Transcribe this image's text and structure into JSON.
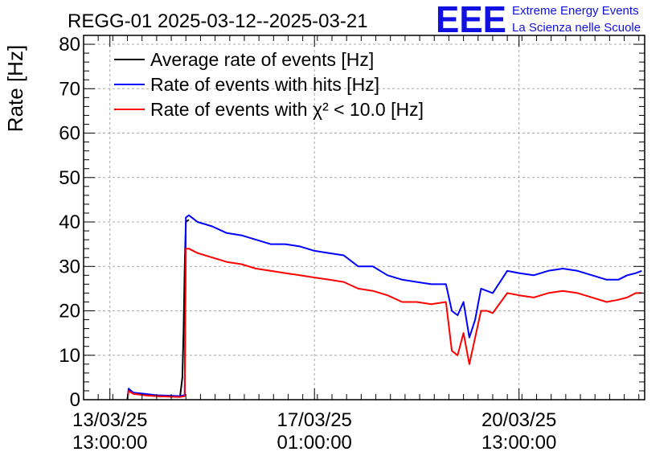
{
  "chart_data": {
    "type": "line",
    "title": "REGG-01 2025-03-12--2025-03-21",
    "xlabel": "",
    "ylabel": "Rate [Hz]",
    "ylim": [
      0,
      82
    ],
    "yticks": [
      0,
      10,
      20,
      30,
      40,
      50,
      60,
      70,
      80
    ],
    "xlim_days": [
      -0.45,
      9.15
    ],
    "x_unit": "days since 13/03/25 13:00:00",
    "xticks": [
      {
        "pos": 0,
        "line1": "13/03/25",
        "line2": "13:00:00"
      },
      {
        "pos": 3.5,
        "line1": "17/03/25",
        "line2": "01:00:00"
      },
      {
        "pos": 7,
        "line1": "20/03/25",
        "line2": "13:00:00"
      }
    ],
    "grid": true,
    "legend_position": "top-left",
    "series": [
      {
        "name": "Average rate of events [Hz]",
        "color": "#000000",
        "x": [
          0.3,
          0.32,
          0.4,
          0.6,
          0.8,
          1.0,
          1.2,
          1.24,
          1.26,
          1.28,
          1.3,
          1.35
        ],
        "y": [
          0,
          2.2,
          1.4,
          1.0,
          0.8,
          0.7,
          0.7,
          5,
          15,
          30,
          40,
          40.5
        ]
      },
      {
        "name": "Rate of events with hits [Hz]",
        "color": "#0000ff",
        "x": [
          0.3,
          0.32,
          0.4,
          0.6,
          0.8,
          1.0,
          1.2,
          1.28,
          1.3,
          1.35,
          1.5,
          1.75,
          2.0,
          2.25,
          2.5,
          2.75,
          3.0,
          3.25,
          3.5,
          3.75,
          4.0,
          4.25,
          4.5,
          4.75,
          5.0,
          5.25,
          5.5,
          5.75,
          5.85,
          5.95,
          6.05,
          6.15,
          6.25,
          6.35,
          6.45,
          6.55,
          6.8,
          7.0,
          7.25,
          7.5,
          7.75,
          8.0,
          8.25,
          8.5,
          8.7,
          8.85,
          9.0,
          9.1
        ],
        "y": [
          0,
          2.5,
          1.6,
          1.3,
          1.0,
          0.9,
          0.8,
          1.0,
          41,
          41.5,
          40,
          39,
          37.5,
          37,
          36,
          35,
          35,
          34.5,
          33.5,
          33,
          32.5,
          30,
          30,
          28,
          27,
          26.5,
          26,
          26,
          20,
          19,
          22,
          14,
          18,
          25,
          24.5,
          24,
          29,
          28.5,
          28,
          29,
          29.5,
          29,
          28,
          27,
          27,
          28,
          28.5,
          29
        ]
      },
      {
        "name": "Rate of events with χ² < 10.0 [Hz]",
        "color": "#ff0000",
        "x": [
          0.3,
          0.32,
          0.4,
          0.6,
          0.8,
          1.0,
          1.2,
          1.28,
          1.3,
          1.35,
          1.5,
          1.75,
          2.0,
          2.25,
          2.5,
          2.75,
          3.0,
          3.25,
          3.5,
          3.75,
          4.0,
          4.25,
          4.5,
          4.75,
          5.0,
          5.25,
          5.5,
          5.75,
          5.85,
          5.95,
          6.05,
          6.15,
          6.25,
          6.35,
          6.45,
          6.55,
          6.8,
          7.0,
          7.25,
          7.5,
          7.75,
          8.0,
          8.25,
          8.5,
          8.7,
          8.85,
          9.0,
          9.1
        ],
        "y": [
          0,
          2.0,
          1.3,
          1.0,
          0.8,
          0.7,
          0.6,
          0.8,
          34,
          34,
          33,
          32,
          31,
          30.5,
          29.5,
          29,
          28.5,
          28,
          27.5,
          27,
          26.5,
          25,
          24.5,
          23.5,
          22,
          22,
          21.5,
          22,
          11,
          10,
          15,
          8,
          14,
          20,
          20,
          19.5,
          24,
          23.5,
          23,
          24,
          24.5,
          24,
          23,
          22,
          22.5,
          23,
          24,
          24
        ]
      }
    ]
  },
  "logo": {
    "mark": "EEE",
    "line1": "Extreme Energy Events",
    "line2": "La Scienza nelle Scuole"
  }
}
